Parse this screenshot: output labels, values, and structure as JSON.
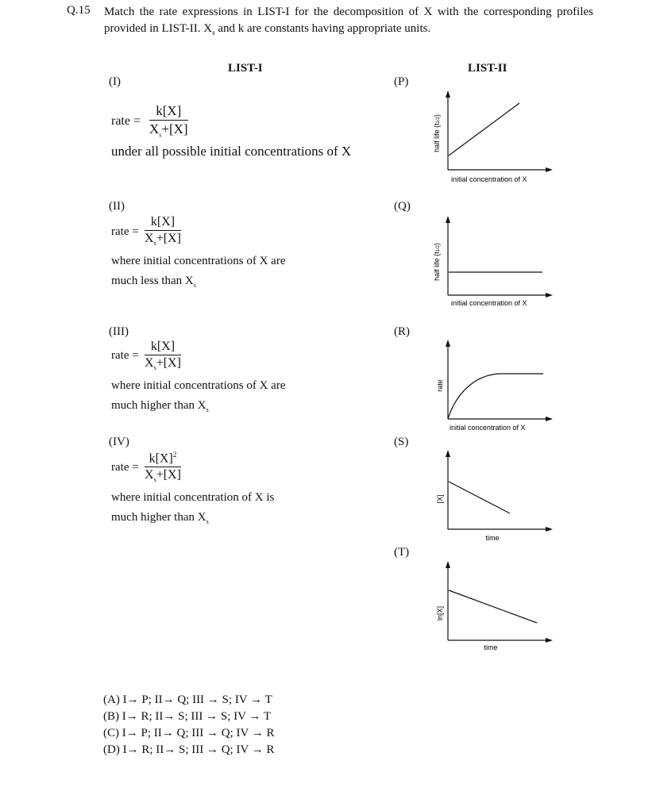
{
  "question": {
    "number": "Q.15",
    "text_a": "Match the rate expressions in LIST-I for the decomposition of X with the corresponding profiles provided in LIST-II. X",
    "text_sub": "s",
    "text_b": " and k are constants having appropriate units."
  },
  "list1": {
    "heading": "LIST-I",
    "items": [
      {
        "label": "(I)",
        "rate": "rate =",
        "num": "k[X]",
        "den_a": "X",
        "den_sub": "s",
        "den_b": "+[X]",
        "note1": "under all possible initial concentrations of X",
        "note2": "",
        "note2_sub": ""
      },
      {
        "label": "(II)",
        "rate": "rate =",
        "num": "k[X]",
        "den_a": "X",
        "den_sub": "s",
        "den_b": "+[X]",
        "note1": "where initial concentrations of X are",
        "note2": "much less than X",
        "note2_sub": "s"
      },
      {
        "label": "(III)",
        "rate": "rate =",
        "num": "k[X]",
        "den_a": "X",
        "den_sub": "s",
        "den_b": "+[X]",
        "note1": "where initial concentrations of X are",
        "note2": "much higher than X",
        "note2_sub": "s"
      },
      {
        "label": "(IV)",
        "rate": "rate =",
        "num": "k[X]",
        "num_sup": "2",
        "den_a": "X",
        "den_sub": "s",
        "den_b": "+[X]",
        "note1": "where initial concentration of X is",
        "note2": "much higher than X",
        "note2_sub": "s"
      }
    ]
  },
  "list2": {
    "heading": "LIST-II",
    "graphs": [
      {
        "label": "(P)",
        "ylabel": "half life (t",
        "ysub": "1/2",
        "yclose": ")",
        "xlabel": "initial concentration of X"
      },
      {
        "label": "(Q)",
        "ylabel": "half life (t",
        "ysub": "1/2",
        "yclose": ")",
        "xlabel": "initial concentration of X"
      },
      {
        "label": "(R)",
        "ylabel": "rate",
        "xlabel": "initial concentration of X"
      },
      {
        "label": "(S)",
        "ylabel": "[X]",
        "xlabel": "time"
      },
      {
        "label": "(T)",
        "ylabel": "ln[X]",
        "xlabel": "time"
      }
    ]
  },
  "options": [
    "(A) I→ P; II→ Q; III → S; IV → T",
    "(B) I→ R; II→ S; III → S; IV → T",
    "(C) I→ P; II→ Q; III → Q; IV → R",
    "(D) I→ R; II→ S; III → Q; IV → R"
  ]
}
